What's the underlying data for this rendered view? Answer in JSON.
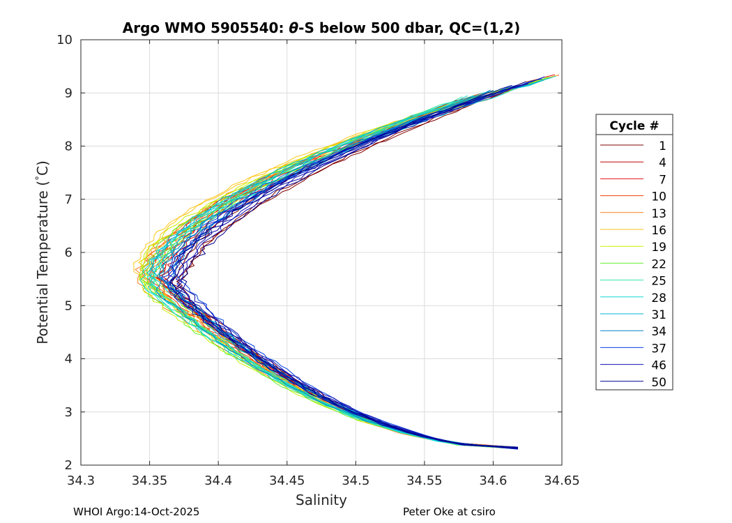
{
  "footer": {
    "left": "WHOI Argo:14-Oct-2025",
    "right": "Peter Oke at csiro"
  },
  "chart_data": {
    "type": "line",
    "title_prefix": "Argo WMO 5905540: ",
    "title_symbol": "θ",
    "title_suffix": "-S below 500 dbar,  QC=(1,2)",
    "xlabel": "Salinity",
    "ylabel_prefix": "Potential Temperature (",
    "ylabel_degree": "°",
    "ylabel_suffix": "C)",
    "xlim": [
      34.3,
      34.65
    ],
    "ylim": [
      2,
      10
    ],
    "xticks": [
      "34.3",
      "34.35",
      "34.4",
      "34.45",
      "34.5",
      "34.55",
      "34.6",
      "34.65"
    ],
    "yticks": [
      "2",
      "3",
      "4",
      "5",
      "6",
      "7",
      "8",
      "9",
      "10"
    ],
    "grid": true,
    "legend": {
      "title": "Cycle #",
      "location": "right-outside",
      "entries": [
        {
          "label": "1",
          "color": "#7f0000"
        },
        {
          "label": "4",
          "color": "#c00000"
        },
        {
          "label": "7",
          "color": "#e81010"
        },
        {
          "label": "10",
          "color": "#f03c00"
        },
        {
          "label": "13",
          "color": "#ff7f1a"
        },
        {
          "label": "16",
          "color": "#ffc61a"
        },
        {
          "label": "19",
          "color": "#c8f000"
        },
        {
          "label": "22",
          "color": "#64f032"
        },
        {
          "label": "25",
          "color": "#30e8a0"
        },
        {
          "label": "28",
          "color": "#10d8d8"
        },
        {
          "label": "31",
          "color": "#00b4d8"
        },
        {
          "label": "34",
          "color": "#0080c8"
        },
        {
          "label": "37",
          "color": "#0040e0"
        },
        {
          "label": "46",
          "color": "#1010b0"
        },
        {
          "label": "50",
          "color": "#00008f"
        }
      ]
    },
    "series": [
      {
        "name": "1",
        "min_salinity": 34.368,
        "nose_temp": 5.25
      },
      {
        "name": "4",
        "min_salinity": 34.362,
        "nose_temp": 5.35
      },
      {
        "name": "7",
        "min_salinity": 34.355,
        "nose_temp": 5.6
      },
      {
        "name": "10",
        "min_salinity": 34.352,
        "nose_temp": 5.55
      },
      {
        "name": "13",
        "min_salinity": 34.345,
        "nose_temp": 5.5
      },
      {
        "name": "16",
        "min_salinity": 34.342,
        "nose_temp": 5.55
      },
      {
        "name": "19",
        "min_salinity": 34.345,
        "nose_temp": 5.45
      },
      {
        "name": "22",
        "min_salinity": 34.348,
        "nose_temp": 5.5
      },
      {
        "name": "25",
        "min_salinity": 34.348,
        "nose_temp": 5.4
      },
      {
        "name": "28",
        "min_salinity": 34.35,
        "nose_temp": 5.45
      },
      {
        "name": "31",
        "min_salinity": 34.355,
        "nose_temp": 5.5
      },
      {
        "name": "34",
        "min_salinity": 34.36,
        "nose_temp": 5.4
      },
      {
        "name": "37",
        "min_salinity": 34.363,
        "nose_temp": 5.35
      },
      {
        "name": "46",
        "min_salinity": 34.366,
        "nose_temp": 5.3
      },
      {
        "name": "50",
        "min_salinity": 34.368,
        "nose_temp": 5.3
      }
    ],
    "deep_endpoint": {
      "salinity": 34.618,
      "temp": 2.32
    },
    "upper_endpoints_temp_range": [
      8.9,
      9.35
    ],
    "upper_endpoints_salinity_range": [
      34.58,
      34.65
    ]
  }
}
